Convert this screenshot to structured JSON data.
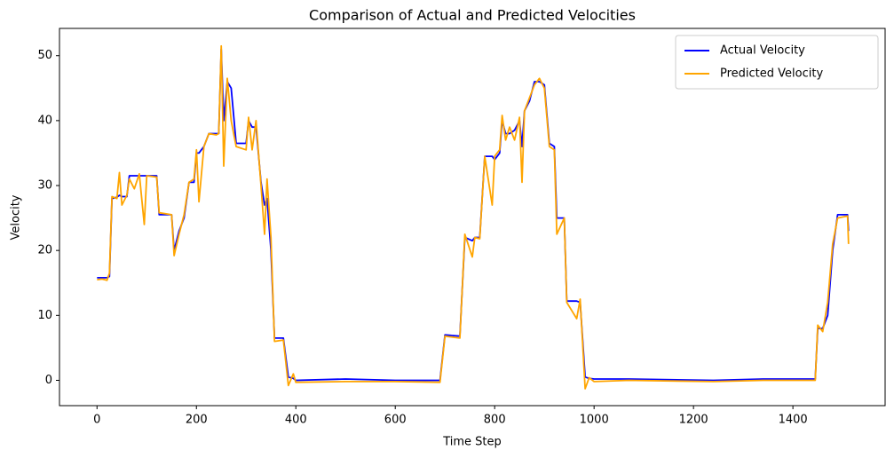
{
  "chart_data": {
    "type": "line",
    "title": "Comparison of Actual and Predicted Velocities",
    "x_label": "Time Step",
    "y_label": "Velocity",
    "x": [
      0,
      10,
      20,
      25,
      30,
      40,
      45,
      50,
      60,
      65,
      75,
      85,
      95,
      100,
      120,
      125,
      150,
      155,
      165,
      175,
      185,
      195,
      200,
      205,
      215,
      225,
      240,
      245,
      250,
      255,
      262,
      270,
      280,
      300,
      305,
      312,
      320,
      330,
      337,
      342,
      350,
      357,
      375,
      385,
      395,
      400,
      500,
      600,
      690,
      700,
      730,
      740,
      755,
      760,
      770,
      780,
      795,
      800,
      810,
      815,
      822,
      830,
      840,
      850,
      855,
      860,
      870,
      880,
      890,
      900,
      910,
      920,
      925,
      940,
      945,
      965,
      972,
      982,
      990,
      1000,
      1070,
      1240,
      1340,
      1445,
      1450,
      1460,
      1470,
      1480,
      1490,
      1510,
      1512
    ],
    "series": [
      {
        "name": "Actual Velocity",
        "color": "blue",
        "values": [
          15.8,
          15.8,
          15.8,
          16,
          28,
          28.2,
          28.5,
          28.3,
          28.3,
          31.5,
          31.5,
          31.5,
          31.5,
          31.5,
          31.5,
          25.5,
          25.5,
          20,
          23,
          25,
          30.5,
          30.5,
          35,
          35,
          36,
          38,
          38,
          38,
          51,
          40,
          46,
          45,
          36.5,
          36.5,
          40,
          39,
          39,
          30.5,
          27,
          28,
          20,
          6.5,
          6.5,
          0.5,
          0.3,
          0,
          0.2,
          0,
          0,
          7,
          6.8,
          22,
          21.5,
          22,
          22,
          34.5,
          34.5,
          34,
          35,
          40,
          38,
          38,
          38.5,
          40,
          36,
          41.5,
          43,
          46,
          46,
          45.5,
          36.5,
          36,
          25,
          25,
          12.2,
          12.2,
          12,
          0.5,
          0.3,
          0.2,
          0.2,
          0,
          0.2,
          0.2,
          8,
          8,
          10,
          20,
          25.5,
          25.5,
          23
        ]
      },
      {
        "name": "Predicted Velocity",
        "color": "orange",
        "values": [
          15.5,
          15.6,
          15.4,
          16.5,
          28.3,
          28,
          32,
          27,
          28.5,
          31,
          29.5,
          31.8,
          24,
          31.5,
          31.3,
          25.8,
          25.5,
          19.2,
          22.5,
          25.5,
          30.5,
          31,
          35.5,
          27.5,
          36,
          38,
          37.8,
          38,
          51.5,
          33,
          46.5,
          40,
          36,
          35.5,
          40.5,
          35.5,
          40,
          30,
          22.5,
          31,
          22,
          6,
          6.2,
          -0.8,
          1.0,
          -0.3,
          -0.2,
          -0.2,
          -0.3,
          6.8,
          6.5,
          22.5,
          19,
          22,
          21.8,
          34.5,
          27,
          34.5,
          35.5,
          40.8,
          37,
          39,
          37,
          40.5,
          30.5,
          41.5,
          43.5,
          45.5,
          46.5,
          45,
          36,
          35.5,
          22.5,
          25,
          12,
          9.5,
          12.5,
          -1.3,
          0.4,
          -0.2,
          0,
          -0.2,
          0,
          0,
          8.5,
          7.5,
          12,
          21,
          25,
          25.3,
          21
        ]
      }
    ],
    "xlim": [
      -75.5,
      1585.5
    ],
    "ylim": [
      -3.9,
      54.2
    ],
    "xticks": [
      0,
      200,
      400,
      600,
      800,
      1000,
      1200,
      1400
    ],
    "yticks": [
      0,
      10,
      20,
      30,
      40,
      50
    ],
    "grid": false,
    "legend": "upper right"
  }
}
